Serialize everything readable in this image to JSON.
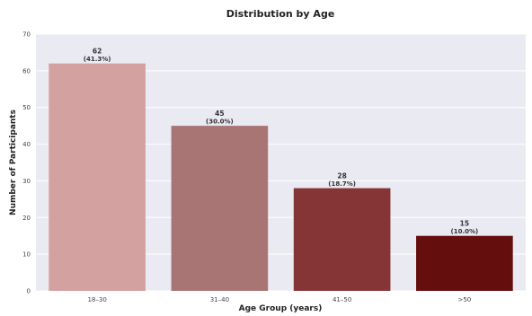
{
  "chart_data": {
    "type": "bar",
    "title": "Distribution by Age",
    "xlabel": "Age Group (years)",
    "ylabel": "Number of Participants",
    "categories": [
      "18–30",
      "31–40",
      "41–50",
      ">50"
    ],
    "values": [
      62,
      45,
      28,
      15
    ],
    "percent_labels": [
      "(41.3%)",
      "(30.0%)",
      "(18.7%)",
      "(10.0%)"
    ],
    "ylim": [
      0,
      70
    ],
    "yticks": [
      0,
      10,
      20,
      30,
      40,
      50,
      60,
      70
    ],
    "grid": true,
    "legend": "none",
    "colors": [
      "#d4a1a1",
      "#a97474",
      "#853535",
      "#640e0e"
    ],
    "background": "#eaeaf2"
  }
}
